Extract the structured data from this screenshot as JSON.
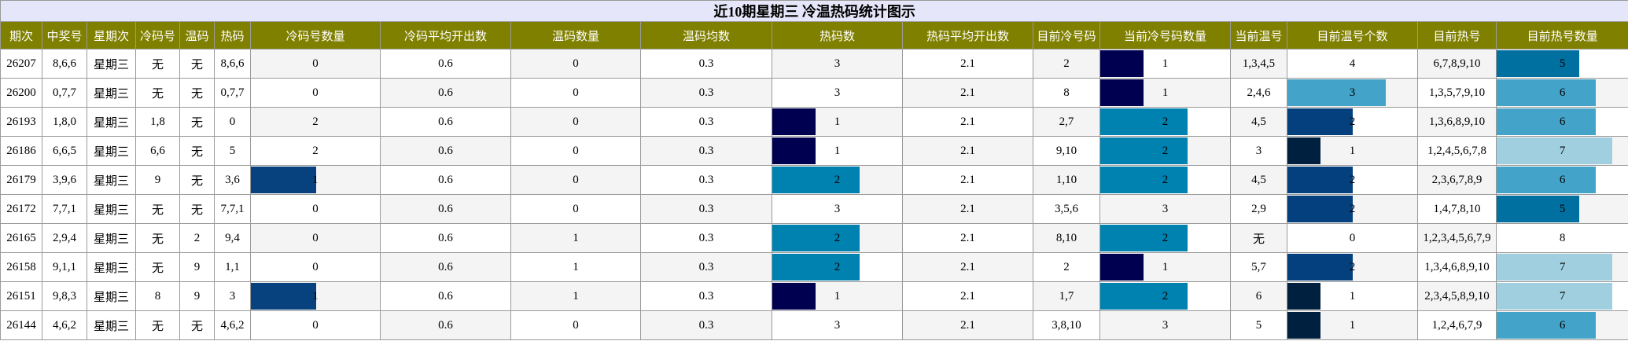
{
  "title": "近10期星期三 冷温热码统计图示",
  "table": {
    "header": [
      "期次",
      "中奖号",
      "星期次",
      "冷码号",
      "温码",
      "热码",
      "冷码号数量",
      "冷码平均开出数",
      "温码数量",
      "温码均数",
      "热码数",
      "热码平均开出数",
      "目前冷号码",
      "当前冷号码数量",
      "当前温号",
      "目前温号个数",
      "目前热号",
      "目前热号数量"
    ],
    "rows": [
      [
        26207,
        "8,6,6",
        "星期三",
        "无",
        "无",
        "8,6,6",
        0,
        0.6,
        0,
        0.3,
        3,
        2.1,
        2,
        1,
        "1,3,4,5",
        4,
        "6,7,8,9,10",
        5
      ],
      [
        26200,
        "0,7,7",
        "星期三",
        "无",
        "无",
        "0,7,7",
        0,
        0.6,
        0,
        0.3,
        3,
        2.1,
        8,
        1,
        "2,4,6",
        3,
        "1,3,5,7,9,10",
        6
      ],
      [
        26193,
        "1,8,0",
        "星期三",
        "1,8",
        "无",
        "0",
        2,
        0.6,
        0,
        0.3,
        1,
        2.1,
        "2,7",
        2,
        "4,5",
        2,
        "1,3,6,8,9,10",
        6
      ],
      [
        26186,
        "6,6,5",
        "星期三",
        "6,6",
        "无",
        "5",
        2,
        0.6,
        0,
        0.3,
        1,
        2.1,
        "9,10",
        2,
        "3",
        1,
        "1,2,4,5,6,7,8",
        7
      ],
      [
        26179,
        "3,9,6",
        "星期三",
        "9",
        "无",
        "3,6",
        1,
        0.6,
        0,
        0.3,
        2,
        2.1,
        "1,10",
        2,
        "4,5",
        2,
        "2,3,6,7,8,9",
        6
      ],
      [
        26172,
        "7,7,1",
        "星期三",
        "无",
        "无",
        "7,7,1",
        0,
        0.6,
        0,
        0.3,
        3,
        2.1,
        "3,5,6",
        3,
        "2,9",
        2,
        "1,4,7,8,10",
        5
      ],
      [
        26165,
        "2,9,4",
        "星期三",
        "无",
        "2",
        "9,4",
        0,
        0.6,
        1,
        0.3,
        2,
        2.1,
        "8,10",
        2,
        "无",
        0,
        "1,2,3,4,5,6,7,9",
        8
      ],
      [
        26158,
        "9,1,1",
        "星期三",
        "无",
        "9",
        "1,1",
        0,
        0.6,
        1,
        0.3,
        2,
        2.1,
        "2",
        1,
        "5,7",
        2,
        "1,3,4,6,8,9,10",
        7
      ],
      [
        26151,
        "9,8,3",
        "星期三",
        "8",
        "9",
        "3",
        1,
        0.6,
        1,
        0.3,
        1,
        2.1,
        "1,7",
        2,
        "6",
        1,
        "2,3,4,5,8,9,10",
        7
      ],
      [
        26144,
        "4,6,2",
        "星期三",
        "无",
        "无",
        "4,6,2",
        0,
        0.6,
        0,
        0.3,
        3,
        2.1,
        "3,8,10",
        3,
        "5",
        1,
        "1,2,4,6,7,9",
        6
      ]
    ],
    "bar_columns": [
      {
        "column": 6,
        "colors": {
          "1": "#08427e"
        }
      },
      {
        "column": 10,
        "colors": {
          "1": "#000050",
          "2": "#0082b0"
        }
      },
      {
        "column": 13,
        "colors": {
          "1": "#000050",
          "2": "#0082b0"
        }
      },
      {
        "column": 15,
        "colors": {
          "1": "#002040",
          "2": "#043f7e",
          "3": "#44a3c8"
        }
      },
      {
        "column": 17,
        "colors": {
          "5": "#0070a0",
          "6": "#44a3c8",
          "7": "#a0d0e0"
        }
      }
    ]
  }
}
